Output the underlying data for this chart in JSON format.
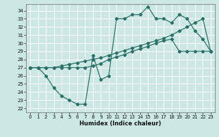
{
  "xlabel": "Humidex (Indice chaleur)",
  "bg_color": "#cce8e4",
  "grid_color": "#ffffff",
  "line_color": "#2d7068",
  "xlim": [
    -0.5,
    23.5
  ],
  "ylim": [
    21.5,
    34.8
  ],
  "xticks": [
    0,
    1,
    2,
    3,
    4,
    5,
    6,
    7,
    8,
    9,
    10,
    11,
    12,
    13,
    14,
    15,
    16,
    17,
    18,
    19,
    20,
    21,
    22,
    23
  ],
  "yticks": [
    22,
    23,
    24,
    25,
    26,
    27,
    28,
    29,
    30,
    31,
    32,
    33,
    34
  ],
  "line1_x": [
    0,
    1,
    2,
    3,
    4,
    5,
    6,
    7,
    8,
    9,
    10,
    11,
    12,
    13,
    14,
    15,
    16,
    17,
    18,
    19,
    20,
    21,
    22,
    23
  ],
  "line1_y": [
    27.0,
    27.0,
    27.0,
    27.0,
    27.0,
    27.0,
    27.0,
    27.0,
    27.2,
    27.5,
    28.0,
    28.3,
    28.6,
    29.0,
    29.3,
    29.6,
    30.0,
    30.3,
    30.5,
    29.0,
    29.0,
    29.0,
    29.0,
    29.0
  ],
  "line2_x": [
    0,
    1,
    2,
    3,
    4,
    5,
    6,
    7,
    8,
    9,
    10,
    11,
    12,
    13,
    14,
    15,
    16,
    17,
    18,
    19,
    20,
    21,
    22,
    23
  ],
  "line2_y": [
    27.0,
    27.0,
    26.0,
    24.5,
    23.5,
    23.0,
    22.5,
    22.5,
    28.5,
    25.5,
    26.0,
    33.0,
    33.0,
    33.5,
    33.5,
    34.5,
    33.0,
    33.0,
    32.5,
    33.5,
    33.0,
    31.5,
    30.5,
    29.0
  ],
  "line3_x": [
    0,
    1,
    2,
    3,
    4,
    5,
    6,
    7,
    8,
    9,
    10,
    11,
    12,
    13,
    14,
    15,
    16,
    17,
    18,
    19,
    20,
    21,
    22,
    23
  ],
  "line3_y": [
    27.0,
    27.0,
    27.0,
    27.0,
    27.2,
    27.4,
    27.6,
    27.8,
    28.0,
    28.2,
    28.5,
    28.8,
    29.1,
    29.4,
    29.7,
    30.0,
    30.3,
    30.6,
    31.0,
    31.5,
    32.0,
    32.5,
    33.0,
    29.0
  ]
}
